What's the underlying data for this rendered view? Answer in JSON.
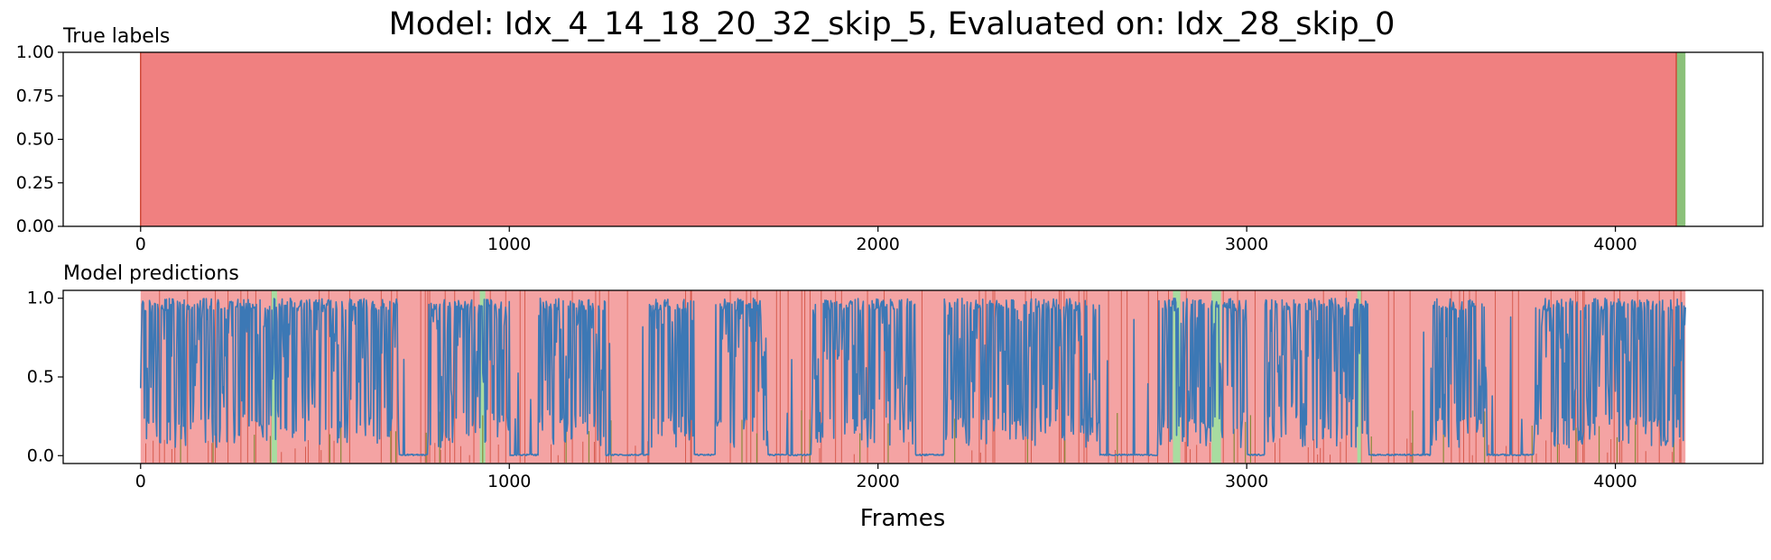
{
  "figure": {
    "title": "Model: Idx_4_14_18_20_32_skip_5, Evaluated on: Idx_28_skip_0",
    "xlabel": "Frames"
  },
  "colors": {
    "red_fill": "#f08080",
    "red_light": "#f4a3a3",
    "green_fill": "#8bc17a",
    "light_green": "#a8dca0",
    "red_line": "#d04a3a",
    "olive_line": "#8a8a3a",
    "blue_line": "#3c78b5"
  },
  "chart_data": [
    {
      "type": "area",
      "title": "True labels",
      "xlim": [
        -210,
        4400
      ],
      "ylim": [
        0,
        1
      ],
      "xticks": [
        0,
        1000,
        2000,
        3000,
        4000
      ],
      "yticks": [
        0.0,
        0.25,
        0.5,
        0.75,
        1.0
      ],
      "xtick_labels": [
        "0",
        "1000",
        "2000",
        "3000",
        "4000"
      ],
      "ytick_labels": [
        "0.00",
        "0.25",
        "0.50",
        "0.75",
        "1.00"
      ],
      "segments": [
        {
          "start": 0,
          "end": 4165,
          "label": "red",
          "value": 1.0
        },
        {
          "start": 4165,
          "end": 4190,
          "label": "green",
          "value": 1.0
        }
      ],
      "grid": false
    },
    {
      "type": "line",
      "title": "Model predictions",
      "xlim": [
        -210,
        4400
      ],
      "ylim": [
        -0.05,
        1.05
      ],
      "xticks": [
        0,
        1000,
        2000,
        3000,
        4000
      ],
      "yticks": [
        0.0,
        0.5,
        1.0
      ],
      "xtick_labels": [
        "0",
        "1000",
        "2000",
        "3000",
        "4000"
      ],
      "ytick_labels": [
        "0.0",
        "0.5",
        "1.0"
      ],
      "background_range": [
        0,
        4190
      ],
      "green_bands": [
        [
          355,
          370
        ],
        [
          920,
          935
        ],
        [
          2800,
          2820
        ],
        [
          2905,
          2930
        ],
        [
          3300,
          3310
        ]
      ],
      "active_spans": [
        [
          0,
          700
        ],
        [
          780,
          1000
        ],
        [
          1080,
          1260
        ],
        [
          1380,
          1500
        ],
        [
          1560,
          1700
        ],
        [
          1820,
          2100
        ],
        [
          2180,
          2600
        ],
        [
          2760,
          3000
        ],
        [
          3050,
          3330
        ],
        [
          3500,
          3650
        ],
        [
          3780,
          4190
        ]
      ],
      "baseline": 0.0,
      "peak": 1.0,
      "grid": false
    }
  ]
}
